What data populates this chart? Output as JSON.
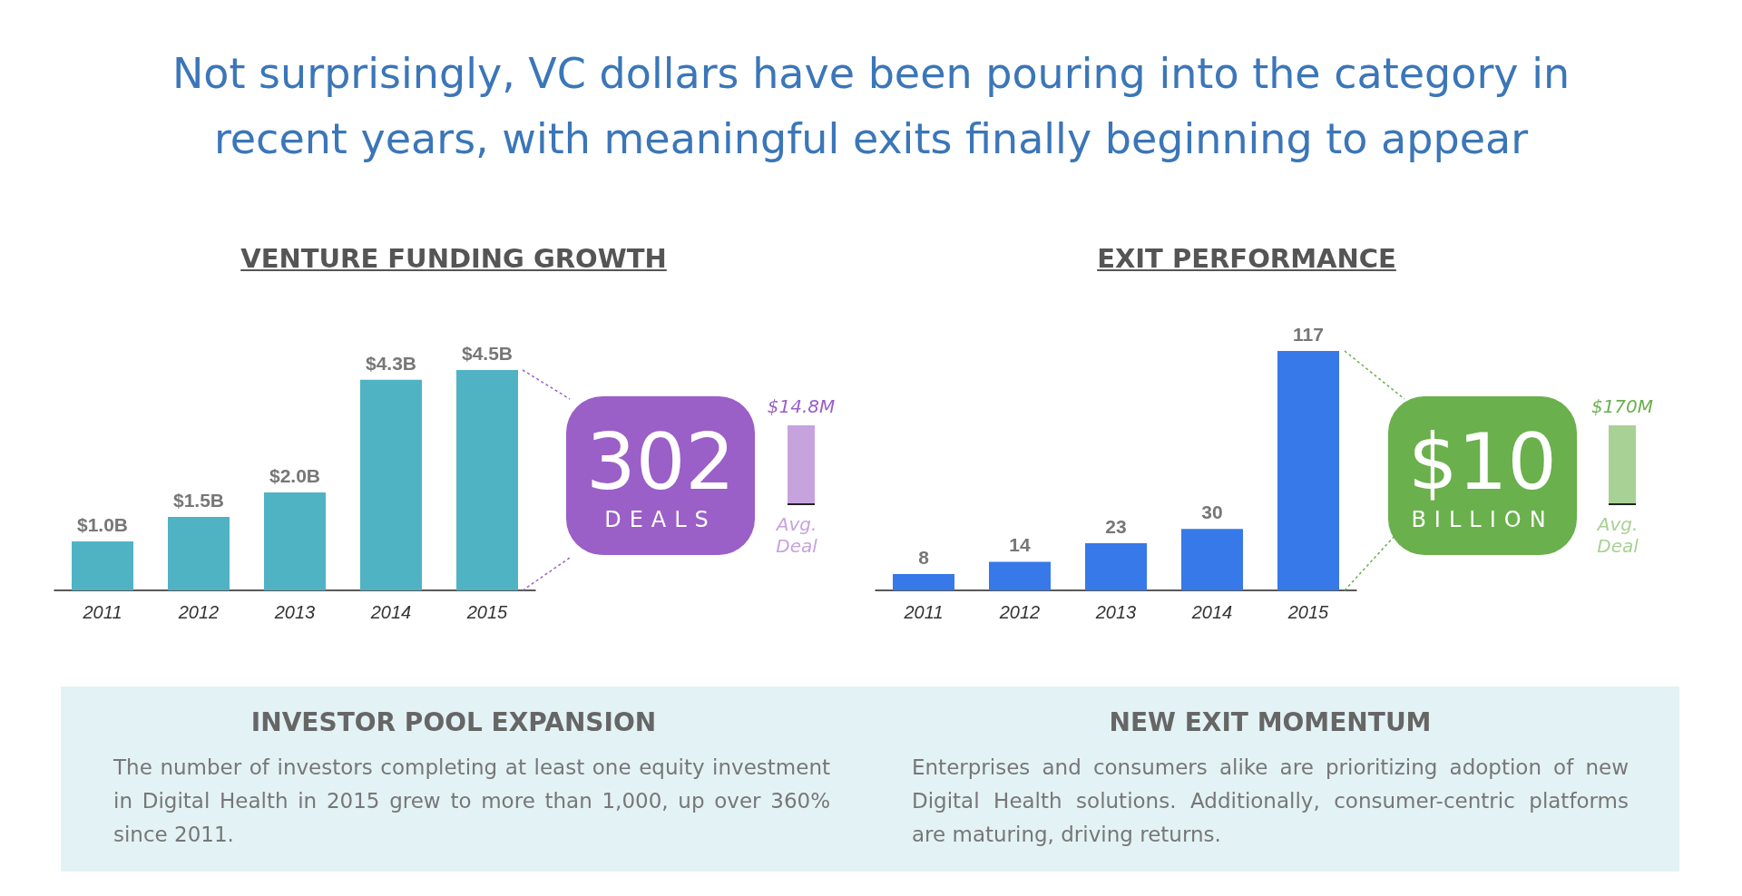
{
  "chart_data": [
    {
      "type": "other",
      "title": "Not surprisingly, VC dollars have been pouring into the category in recent years, with meaningful exits finally beginning to appear"
    },
    {
      "type": "bar",
      "title": "VENTURE FUNDING GROWTH",
      "categories": [
        "2011",
        "2012",
        "2013",
        "2014",
        "2015"
      ],
      "values": [
        1.0,
        1.5,
        2.0,
        4.3,
        4.5
      ],
      "value_labels": [
        "$1.0B",
        "$1.5B",
        "$2.0B",
        "$4.3B",
        "$4.5B"
      ],
      "color": "#4fb3c4",
      "annotations": [
        "302",
        "DEALS",
        "$14.8M",
        "Avg. Deal"
      ]
    },
    {
      "type": "bar",
      "title": "EXIT PERFORMANCE",
      "categories": [
        "2011",
        "2012",
        "2013",
        "2014",
        "2015"
      ],
      "values": [
        8,
        14,
        23,
        30,
        117
      ],
      "data_labels": true,
      "color": "#3779e8",
      "annotations": [
        "$10",
        "BILLION",
        "$170M",
        "Avg. Deal"
      ]
    },
    {
      "type": "other",
      "title": "INVESTOR POOL EXPANSION",
      "annotations": [
        "The number of investors completing at least one equity investment in Digital Health in 2015 grew to more than 1,000, up over 360% since 2011."
      ]
    },
    {
      "type": "other",
      "title": "NEW EXIT MOMENTUM",
      "annotations": [
        "Enterprises and consumers alike are prioritizing adoption of new Digital Health solutions. Additionally, consumer-centric platforms are maturing, driving returns."
      ]
    }
  ]
}
